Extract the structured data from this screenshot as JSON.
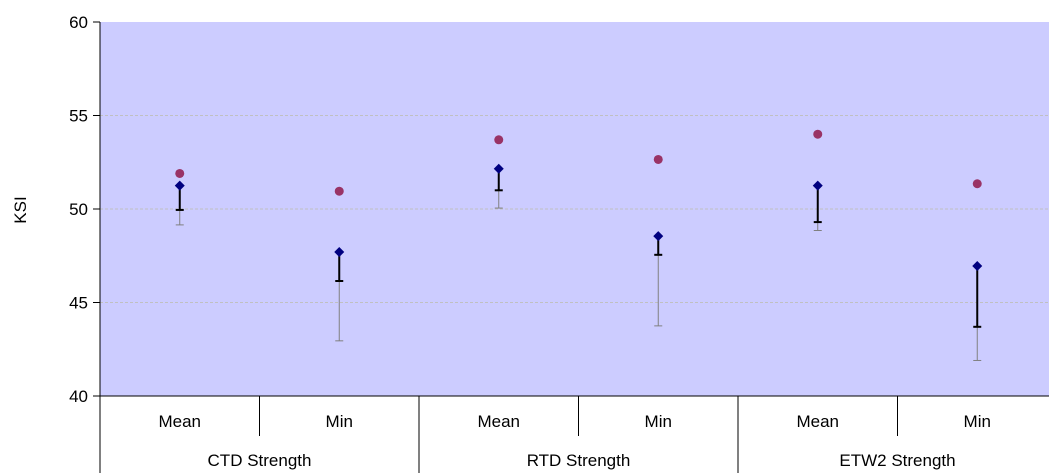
{
  "chart_data": {
    "type": "scatter",
    "ylabel": "KSI",
    "ylim": [
      40,
      60
    ],
    "yticks": [
      40,
      45,
      50,
      55,
      60
    ],
    "grid": true,
    "legend": "none",
    "categories": [
      "Mean",
      "Min",
      "Mean",
      "Min",
      "Mean",
      "Min"
    ],
    "groups": [
      "CTD Strength",
      "RTD Strength",
      "ETW2 Strength"
    ],
    "series": [
      {
        "marker": "circle",
        "color": "#993366",
        "values": [
          51.9,
          50.95,
          53.7,
          52.65,
          54.0,
          51.35
        ]
      },
      {
        "marker": "diamond",
        "color": "#000080",
        "values": [
          51.25,
          47.7,
          52.15,
          48.55,
          51.25,
          46.95
        ]
      }
    ],
    "error_ranges": [
      {
        "lower_thick": 49.95,
        "lower_thin": 49.15
      },
      {
        "lower_thick": 46.15,
        "lower_thin": 42.95
      },
      {
        "lower_thick": 51.0,
        "lower_thin": 50.05
      },
      {
        "lower_thick": 47.55,
        "lower_thin": 43.75
      },
      {
        "lower_thick": 49.3,
        "lower_thin": 48.85
      },
      {
        "lower_thick": 43.7,
        "lower_thin": 41.9
      }
    ],
    "colors": {
      "plot_background": "#ccccff",
      "gridline": "#c0c0c0",
      "axis": "#000000",
      "thick_bar": "#000000",
      "thin_bar": "#808080"
    }
  }
}
